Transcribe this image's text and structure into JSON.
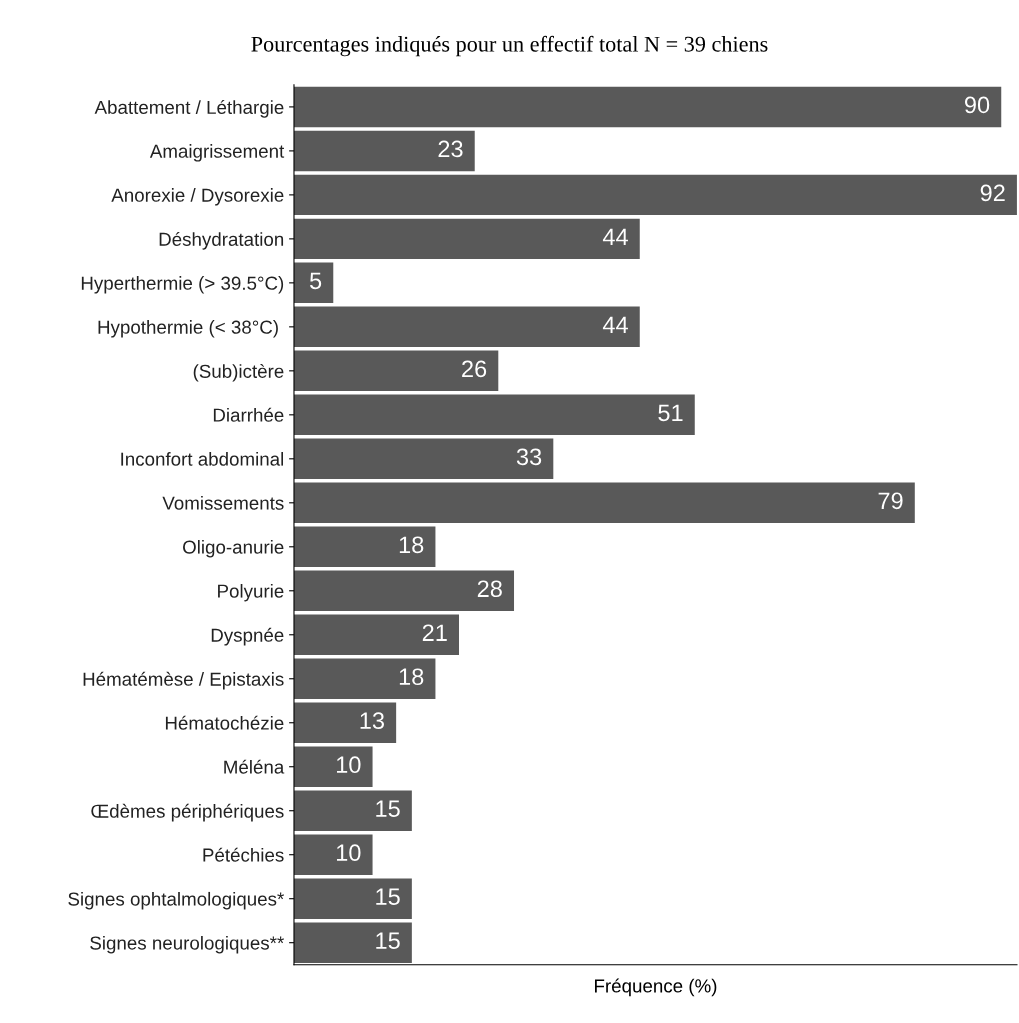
{
  "chart_data": {
    "type": "bar",
    "orientation": "horizontal",
    "title": "Pourcentages indiqués pour un effectif total N = 39 chiens",
    "xlabel": "Fréquence (%)",
    "categories": [
      "Abattement / Léthargie",
      "Amaigrissement",
      "Anorexie / Dysorexie",
      "Déshydratation",
      "Hyperthermie (> 39.5°C)",
      "Hypothermie (< 38°C) ",
      "(Sub)ictère",
      "Diarrhée",
      "Inconfort abdominal",
      "Vomissements",
      "Oligo-anurie",
      "Polyurie",
      "Dyspnée",
      "Hématémèse / Epistaxis",
      "Hématochézie",
      "Méléna",
      "Œdèmes périphériques",
      "Pétéchies",
      "Signes ophtalmologiques*",
      "Signes neurologiques**"
    ],
    "values": [
      90,
      23,
      92,
      44,
      5,
      44,
      26,
      51,
      33,
      79,
      18,
      28,
      21,
      18,
      13,
      10,
      15,
      10,
      15,
      15
    ],
    "color": "#595959",
    "data_labels": true,
    "tick_labels": "y",
    "grid": false,
    "legend": false
  }
}
